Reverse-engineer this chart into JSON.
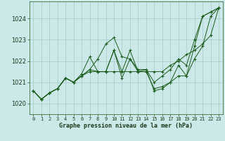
{
  "background_color": "#cce8e8",
  "grid_color": "#aacfcf",
  "line_color": "#1a5c1a",
  "x_labels": [
    "0",
    "1",
    "2",
    "3",
    "4",
    "5",
    "6",
    "7",
    "8",
    "9",
    "10",
    "11",
    "12",
    "13",
    "14",
    "15",
    "16",
    "17",
    "18",
    "19",
    "20",
    "21",
    "22",
    "23"
  ],
  "xlabel": "Graphe pression niveau de la mer (hPa)",
  "ylim": [
    1019.5,
    1024.8
  ],
  "yticks": [
    1020,
    1021,
    1022,
    1023,
    1024
  ],
  "series": [
    [
      1020.6,
      1020.2,
      1020.5,
      1020.7,
      1021.2,
      1021.0,
      1021.3,
      1021.6,
      1022.1,
      1022.8,
      1023.1,
      1022.2,
      1022.1,
      1021.6,
      1021.6,
      1020.6,
      1020.7,
      1021.0,
      1021.8,
      1021.3,
      1022.7,
      1024.1,
      1024.3,
      1024.5
    ],
    [
      1020.6,
      1020.2,
      1020.5,
      1020.7,
      1021.2,
      1021.0,
      1021.3,
      1021.6,
      1021.5,
      1021.5,
      1022.5,
      1021.2,
      1022.1,
      1021.5,
      1021.6,
      1021.0,
      1021.3,
      1021.6,
      1022.1,
      1021.8,
      1023.0,
      1024.1,
      1024.3,
      1024.5
    ],
    [
      1020.6,
      1020.2,
      1020.5,
      1020.7,
      1021.2,
      1021.0,
      1021.3,
      1021.5,
      1021.5,
      1021.5,
      1021.5,
      1021.5,
      1021.5,
      1021.5,
      1021.5,
      1021.5,
      1021.5,
      1021.8,
      1022.0,
      1022.3,
      1022.5,
      1022.8,
      1023.2,
      1024.5
    ],
    [
      1020.6,
      1020.2,
      1020.5,
      1020.7,
      1021.2,
      1021.0,
      1021.4,
      1022.2,
      1021.5,
      1021.5,
      1022.5,
      1021.5,
      1022.5,
      1021.5,
      1021.5,
      1020.7,
      1020.8,
      1021.0,
      1021.3,
      1021.3,
      1022.1,
      1022.7,
      1024.1,
      1024.5
    ]
  ]
}
